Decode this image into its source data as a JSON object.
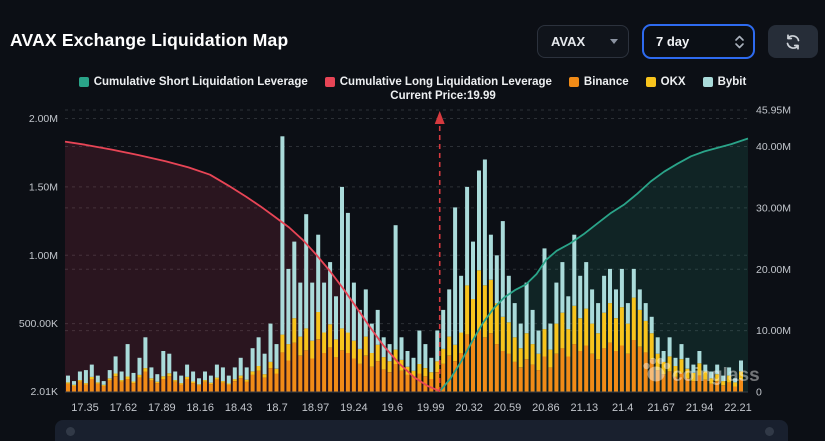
{
  "header": {
    "title": "AVAX Exchange Liquidation Map"
  },
  "controls": {
    "symbol": "AVAX",
    "timeframe": "7 day",
    "accent_border": "#2e6bf0"
  },
  "legend": [
    {
      "label": "Cumulative Short Liquidation Leverage",
      "color": "#2aa489"
    },
    {
      "label": "Cumulative Long Liquidation Leverage",
      "color": "#e84556"
    },
    {
      "label": "Binance",
      "color": "#f18b17"
    },
    {
      "label": "OKX",
      "color": "#f8c41d"
    },
    {
      "label": "Bybit",
      "color": "#aadbda"
    }
  ],
  "watermark": {
    "text": "coinglass"
  },
  "chart_data": {
    "type": "composite",
    "subtype": "stacked-bars-plus-cumulative-lines",
    "current_price": 19.99,
    "current_price_label": "Current Price:19.99",
    "price_axis": {
      "labels": [
        "17.35",
        "17.62",
        "17.89",
        "18.16",
        "18.43",
        "18.7",
        "18.97",
        "19.24",
        "19.6",
        "19.99",
        "20.32",
        "20.59",
        "20.86",
        "21.13",
        "21.4",
        "21.67",
        "21.94",
        "22.21"
      ],
      "min": 17.2,
      "max": 22.3
    },
    "left_axis": {
      "unit": "K",
      "max_value_k": 2000,
      "ticks": [
        {
          "label": "2.00M",
          "value_k": 2000
        },
        {
          "label": "1.50M",
          "value_k": 1500
        },
        {
          "label": "1.00M",
          "value_k": 1000
        },
        {
          "label": "500.00K",
          "value_k": 500
        },
        {
          "label": "2.01K",
          "value_k": 2.01
        }
      ]
    },
    "right_axis": {
      "unit": "M",
      "max_value_m": 45.95,
      "ticks": [
        {
          "label": "45.95M",
          "value_m": 45.95
        },
        {
          "label": "40.00M",
          "value_m": 40
        },
        {
          "label": "30.00M",
          "value_m": 30
        },
        {
          "label": "20.00M",
          "value_m": 20
        },
        {
          "label": "10.00M",
          "value_m": 10
        },
        {
          "label": "0",
          "value_m": 0
        }
      ]
    },
    "bars": {
      "series_names": [
        "Binance",
        "OKX",
        "Bybit"
      ],
      "colors": [
        "#f18b17",
        "#f8c41d",
        "#aadbda"
      ],
      "unit": "K",
      "values": [
        [
          60,
          10,
          50
        ],
        [
          45,
          8,
          27
        ],
        [
          75,
          12,
          63
        ],
        [
          55,
          10,
          95
        ],
        [
          95,
          15,
          90
        ],
        [
          60,
          10,
          50
        ],
        [
          45,
          8,
          27
        ],
        [
          85,
          14,
          61
        ],
        [
          115,
          20,
          125
        ],
        [
          75,
          12,
          63
        ],
        [
          95,
          18,
          237
        ],
        [
          65,
          12,
          63
        ],
        [
          105,
          20,
          125
        ],
        [
          150,
          25,
          225
        ],
        [
          85,
          15,
          80
        ],
        [
          65,
          10,
          55
        ],
        [
          95,
          20,
          185
        ],
        [
          115,
          22,
          143
        ],
        [
          75,
          12,
          63
        ],
        [
          55,
          10,
          55
        ],
        [
          95,
          15,
          90
        ],
        [
          65,
          12,
          73
        ],
        [
          48,
          8,
          44
        ],
        [
          75,
          12,
          63
        ],
        [
          58,
          10,
          52
        ],
        [
          90,
          15,
          95
        ],
        [
          68,
          12,
          100
        ],
        [
          52,
          10,
          58
        ],
        [
          80,
          14,
          86
        ],
        [
          100,
          20,
          130
        ],
        [
          75,
          15,
          90
        ],
        [
          125,
          25,
          170
        ],
        [
          155,
          35,
          210
        ],
        [
          105,
          25,
          150
        ],
        [
          175,
          45,
          280
        ],
        [
          135,
          35,
          180
        ],
        [
          290,
          130,
          1450
        ],
        [
          230,
          120,
          550
        ],
        [
          360,
          180,
          560
        ],
        [
          265,
          140,
          395
        ],
        [
          305,
          160,
          835
        ],
        [
          245,
          130,
          425
        ],
        [
          385,
          200,
          565
        ],
        [
          285,
          150,
          365
        ],
        [
          325,
          170,
          455
        ],
        [
          255,
          130,
          315
        ],
        [
          305,
          160,
          1035
        ],
        [
          285,
          150,
          875
        ],
        [
          245,
          130,
          425
        ],
        [
          205,
          110,
          285
        ],
        [
          265,
          140,
          345
        ],
        [
          185,
          100,
          215
        ],
        [
          225,
          120,
          255
        ],
        [
          165,
          90,
          145
        ],
        [
          145,
          80,
          125
        ],
        [
          205,
          105,
          910
        ],
        [
          155,
          80,
          165
        ],
        [
          125,
          60,
          115
        ],
        [
          105,
          50,
          95
        ],
        [
          135,
          70,
          245
        ],
        [
          115,
          60,
          175
        ],
        [
          95,
          50,
          105
        ],
        [
          145,
          80,
          225
        ],
        [
          205,
          110,
          285
        ],
        [
          265,
          140,
          345
        ],
        [
          225,
          120,
          1005
        ],
        [
          285,
          150,
          415
        ],
        [
          420,
          360,
          720
        ],
        [
          380,
          300,
          420
        ],
        [
          450,
          440,
          730
        ],
        [
          400,
          380,
          920
        ],
        [
          430,
          390,
          330
        ],
        [
          350,
          300,
          350
        ],
        [
          300,
          250,
          700
        ],
        [
          280,
          230,
          340
        ],
        [
          220,
          180,
          250
        ],
        [
          180,
          140,
          180
        ],
        [
          240,
          190,
          370
        ],
        [
          200,
          150,
          250
        ],
        [
          160,
          120,
          170
        ],
        [
          260,
          200,
          590
        ],
        [
          180,
          130,
          190
        ],
        [
          280,
          220,
          300
        ],
        [
          320,
          260,
          370
        ],
        [
          260,
          200,
          240
        ],
        [
          350,
          280,
          520
        ],
        [
          300,
          240,
          310
        ],
        [
          340,
          270,
          340
        ],
        [
          280,
          220,
          250
        ],
        [
          240,
          190,
          220
        ],
        [
          320,
          260,
          270
        ],
        [
          360,
          290,
          250
        ],
        [
          300,
          240,
          210
        ],
        [
          340,
          280,
          280
        ],
        [
          280,
          220,
          150
        ],
        [
          380,
          310,
          210
        ],
        [
          330,
          270,
          150
        ],
        [
          290,
          230,
          130
        ],
        [
          240,
          190,
          120
        ],
        [
          160,
          120,
          120
        ],
        [
          130,
          90,
          80
        ],
        [
          150,
          110,
          140
        ],
        [
          110,
          80,
          60
        ],
        [
          140,
          100,
          110
        ],
        [
          100,
          70,
          80
        ],
        [
          80,
          60,
          60
        ],
        [
          120,
          90,
          90
        ],
        [
          90,
          60,
          50
        ],
        [
          60,
          40,
          50
        ],
        [
          80,
          50,
          70
        ],
        [
          50,
          30,
          40
        ],
        [
          70,
          50,
          60
        ],
        [
          40,
          30,
          30
        ],
        [
          90,
          60,
          80
        ]
      ]
    },
    "lines": {
      "long": {
        "name": "Cumulative Long Liquidation Leverage",
        "color": "#e84556",
        "fill": "rgba(226,64,90,0.14)",
        "points_price_vs_m": [
          [
            17.2,
            40.8
          ],
          [
            17.35,
            40.3
          ],
          [
            17.55,
            39.5
          ],
          [
            17.75,
            38.6
          ],
          [
            17.95,
            37.6
          ],
          [
            18.12,
            36.6
          ],
          [
            18.28,
            35.4
          ],
          [
            18.42,
            33.6
          ],
          [
            18.55,
            31.8
          ],
          [
            18.66,
            30.2
          ],
          [
            18.76,
            28.6
          ],
          [
            18.87,
            26.8
          ],
          [
            18.97,
            24.8
          ],
          [
            19.07,
            22.4
          ],
          [
            19.17,
            19.8
          ],
          [
            19.27,
            16.9
          ],
          [
            19.37,
            13.8
          ],
          [
            19.47,
            10.6
          ],
          [
            19.57,
            7.6
          ],
          [
            19.68,
            4.8
          ],
          [
            19.8,
            2.4
          ],
          [
            19.9,
            1.0
          ],
          [
            19.99,
            0.15
          ]
        ]
      },
      "short": {
        "name": "Cumulative Short Liquidation Leverage",
        "color": "#2aa489",
        "fill": "rgba(42,164,137,0.15)",
        "points_price_vs_m": [
          [
            19.99,
            0.1
          ],
          [
            20.07,
            2.2
          ],
          [
            20.15,
            5.0
          ],
          [
            20.23,
            8.2
          ],
          [
            20.31,
            11.2
          ],
          [
            20.39,
            13.6
          ],
          [
            20.47,
            15.4
          ],
          [
            20.55,
            16.6
          ],
          [
            20.63,
            17.5
          ],
          [
            20.71,
            19.2
          ],
          [
            20.78,
            21.5
          ],
          [
            20.86,
            23.0
          ],
          [
            20.96,
            24.2
          ],
          [
            21.06,
            25.7
          ],
          [
            21.16,
            27.4
          ],
          [
            21.26,
            29.1
          ],
          [
            21.36,
            30.5
          ],
          [
            21.46,
            32.3
          ],
          [
            21.56,
            34.3
          ],
          [
            21.66,
            35.9
          ],
          [
            21.76,
            37.2
          ],
          [
            21.86,
            38.4
          ],
          [
            21.96,
            39.2
          ],
          [
            22.06,
            39.8
          ],
          [
            22.16,
            40.4
          ],
          [
            22.3,
            41.3
          ]
        ]
      }
    },
    "layout_hints": {
      "grid": "dashed",
      "legend_position": "top-center",
      "background": "#0c0f15"
    }
  }
}
